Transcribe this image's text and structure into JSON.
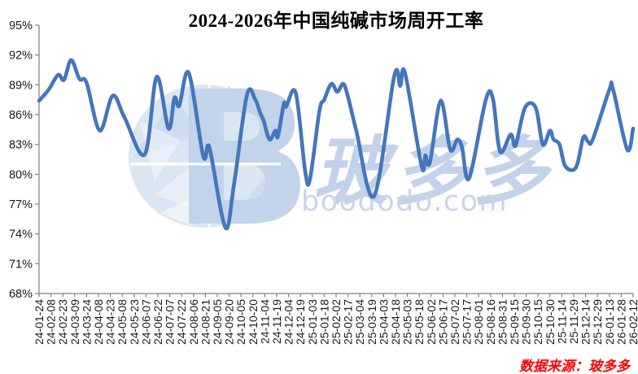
{
  "header": {
    "title": "2024-2026年中国纯碱市场周开工率"
  },
  "footer": {
    "source_note": "数据来源：玻多多"
  },
  "watermark": {
    "logo_letter": "B",
    "brand_cjk": "玻多多",
    "brand_domain": "boododo.com",
    "globe_color": "#dbe6f3",
    "facet_color": "#cddcef",
    "letter_color": "#c2d3ea",
    "cjk_color": "#c2d2e9",
    "domain_color": "#c9d5e9"
  },
  "colors": {
    "line": "#4476BB",
    "axis": "#808080",
    "tick_label": "#1a1a1a",
    "title": "#000000",
    "source_note": "#ff0000",
    "background": "#ffffff"
  },
  "chart_data": {
    "type": "line",
    "title": "2024-2026年中国纯碱市场周开工率",
    "xlabel": "",
    "ylabel": "",
    "ylim": [
      68,
      95
    ],
    "y_tick_step": 3,
    "y_tick_labels": [
      "95%",
      "92%",
      "89%",
      "86%",
      "83%",
      "80%",
      "77%",
      "74%",
      "71%",
      "68%"
    ],
    "grid": false,
    "legend_position": "none",
    "x_unit": "category-index (fractional = between labeled dates)",
    "y_unit": "percent",
    "categories": [
      "24-01-24",
      "24-02-08",
      "24-02-23",
      "24-03-09",
      "24-03-24",
      "24-04-08",
      "24-04-23",
      "24-05-08",
      "24-05-23",
      "24-06-07",
      "24-06-22",
      "24-07-07",
      "24-07-22",
      "24-08-06",
      "24-08-21",
      "24-09-05",
      "24-09-20",
      "24-10-05",
      "24-10-20",
      "24-11-04",
      "24-11-19",
      "24-12-04",
      "24-12-19",
      "25-01-03",
      "25-01-18",
      "25-02-02",
      "25-02-17",
      "25-03-04",
      "25-03-19",
      "25-04-03",
      "25-04-18",
      "25-05-03",
      "25-05-18",
      "25-06-02",
      "25-06-17",
      "25-07-02",
      "25-07-17",
      "25-08-01",
      "25-08-16",
      "25-08-31",
      "25-09-15",
      "25-09-30",
      "25-10-15",
      "25-10-30",
      "25-11-14",
      "25-11-29",
      "25-12-14",
      "25-12-29",
      "26-01-13",
      "26-01-28",
      "26-02-12"
    ],
    "series": [
      {
        "name": "周开工率",
        "points": [
          [
            0,
            87.4
          ],
          [
            0.8,
            88.5
          ],
          [
            1.6,
            90.0
          ],
          [
            2.1,
            89.5
          ],
          [
            2.7,
            91.5
          ],
          [
            3.4,
            89.6
          ],
          [
            4.0,
            89.2
          ],
          [
            5.1,
            84.4
          ],
          [
            6.2,
            87.9
          ],
          [
            7.2,
            85.7
          ],
          [
            8.9,
            82.0
          ],
          [
            9.9,
            89.8
          ],
          [
            10.9,
            84.6
          ],
          [
            11.4,
            87.7
          ],
          [
            11.8,
            86.9
          ],
          [
            12.6,
            90.2
          ],
          [
            13.8,
            81.9
          ],
          [
            14.2,
            82.9
          ],
          [
            14.5,
            81.8
          ],
          [
            15.7,
            74.6
          ],
          [
            16.4,
            78.9
          ],
          [
            17.5,
            88.0
          ],
          [
            18.2,
            87.5
          ],
          [
            18.6,
            86.2
          ],
          [
            18.9,
            85.4
          ],
          [
            19.4,
            83.5
          ],
          [
            19.9,
            84.4
          ],
          [
            20.1,
            83.8
          ],
          [
            20.6,
            87.1
          ],
          [
            20.8,
            86.8
          ],
          [
            21.6,
            88.2
          ],
          [
            22.4,
            80.3
          ],
          [
            22.8,
            79.5
          ],
          [
            23.6,
            86.4
          ],
          [
            24.0,
            87.5
          ],
          [
            24.6,
            89.1
          ],
          [
            25.1,
            88.3
          ],
          [
            25.6,
            89.1
          ],
          [
            26.0,
            87.8
          ],
          [
            26.7,
            84.4
          ],
          [
            28.2,
            77.8
          ],
          [
            29.9,
            89.9
          ],
          [
            30.4,
            88.9
          ],
          [
            30.8,
            90.2
          ],
          [
            32.2,
            80.8
          ],
          [
            32.5,
            81.9
          ],
          [
            32.9,
            81.2
          ],
          [
            33.8,
            87.4
          ],
          [
            34.6,
            82.5
          ],
          [
            35.2,
            83.5
          ],
          [
            35.6,
            82.7
          ],
          [
            36.2,
            79.6
          ],
          [
            37.6,
            87.5
          ],
          [
            38.2,
            87.6
          ],
          [
            38.8,
            82.3
          ],
          [
            39.7,
            84.0
          ],
          [
            40.1,
            82.9
          ],
          [
            40.9,
            86.7
          ],
          [
            41.8,
            86.7
          ],
          [
            42.4,
            83.0
          ],
          [
            43.0,
            84.4
          ],
          [
            43.3,
            83.5
          ],
          [
            43.8,
            83.0
          ],
          [
            44.3,
            80.8
          ],
          [
            45.2,
            80.7
          ],
          [
            45.8,
            83.7
          ],
          [
            46.2,
            83.3
          ],
          [
            46.6,
            83.5
          ],
          [
            48.0,
            88.5
          ],
          [
            48.3,
            88.6
          ],
          [
            49.5,
            82.5
          ],
          [
            50.0,
            84.6
          ]
        ]
      }
    ]
  }
}
